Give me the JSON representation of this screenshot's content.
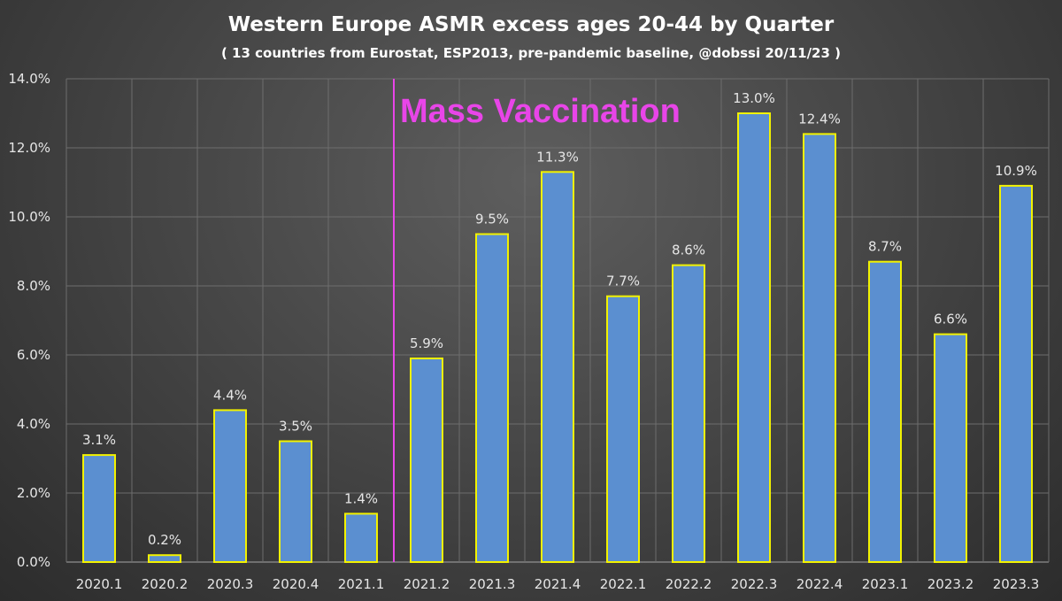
{
  "chart_data": {
    "type": "bar",
    "title": "Western Europe ASMR excess ages 20-44 by Quarter",
    "subtitle": "( 13 countries from Eurostat, ESP2013, pre-pandemic baseline, @dobssi 20/11/23 )",
    "xlabel": "",
    "ylabel": "",
    "categories": [
      "2020.1",
      "2020.2",
      "2020.3",
      "2020.4",
      "2021.1",
      "2021.2",
      "2021.3",
      "2021.4",
      "2022.1",
      "2022.2",
      "2022.3",
      "2022.4",
      "2023.1",
      "2023.2",
      "2023.3"
    ],
    "values": [
      3.1,
      0.2,
      4.4,
      3.5,
      1.4,
      5.9,
      9.5,
      11.3,
      7.7,
      8.6,
      13.0,
      12.4,
      8.7,
      6.6,
      10.9
    ],
    "value_labels": [
      "3.1%",
      "0.2%",
      "4.4%",
      "3.5%",
      "1.4%",
      "5.9%",
      "9.5%",
      "11.3%",
      "7.7%",
      "8.6%",
      "13.0%",
      "12.4%",
      "8.7%",
      "6.6%",
      "10.9%"
    ],
    "ylim": [
      0,
      14
    ],
    "yticks": [
      0,
      2,
      4,
      6,
      8,
      10,
      12,
      14
    ],
    "ytick_labels": [
      "0.0%",
      "2.0%",
      "4.0%",
      "6.0%",
      "8.0%",
      "10.0%",
      "12.0%",
      "14.0%"
    ],
    "grid": true,
    "bar_fill_color": "#5b8fd0",
    "bar_border_color": "#f2f200",
    "annotation": {
      "text": "Mass Vaccination",
      "color": "#e845e8",
      "line_between_categories": [
        "2021.1",
        "2021.2"
      ]
    }
  }
}
